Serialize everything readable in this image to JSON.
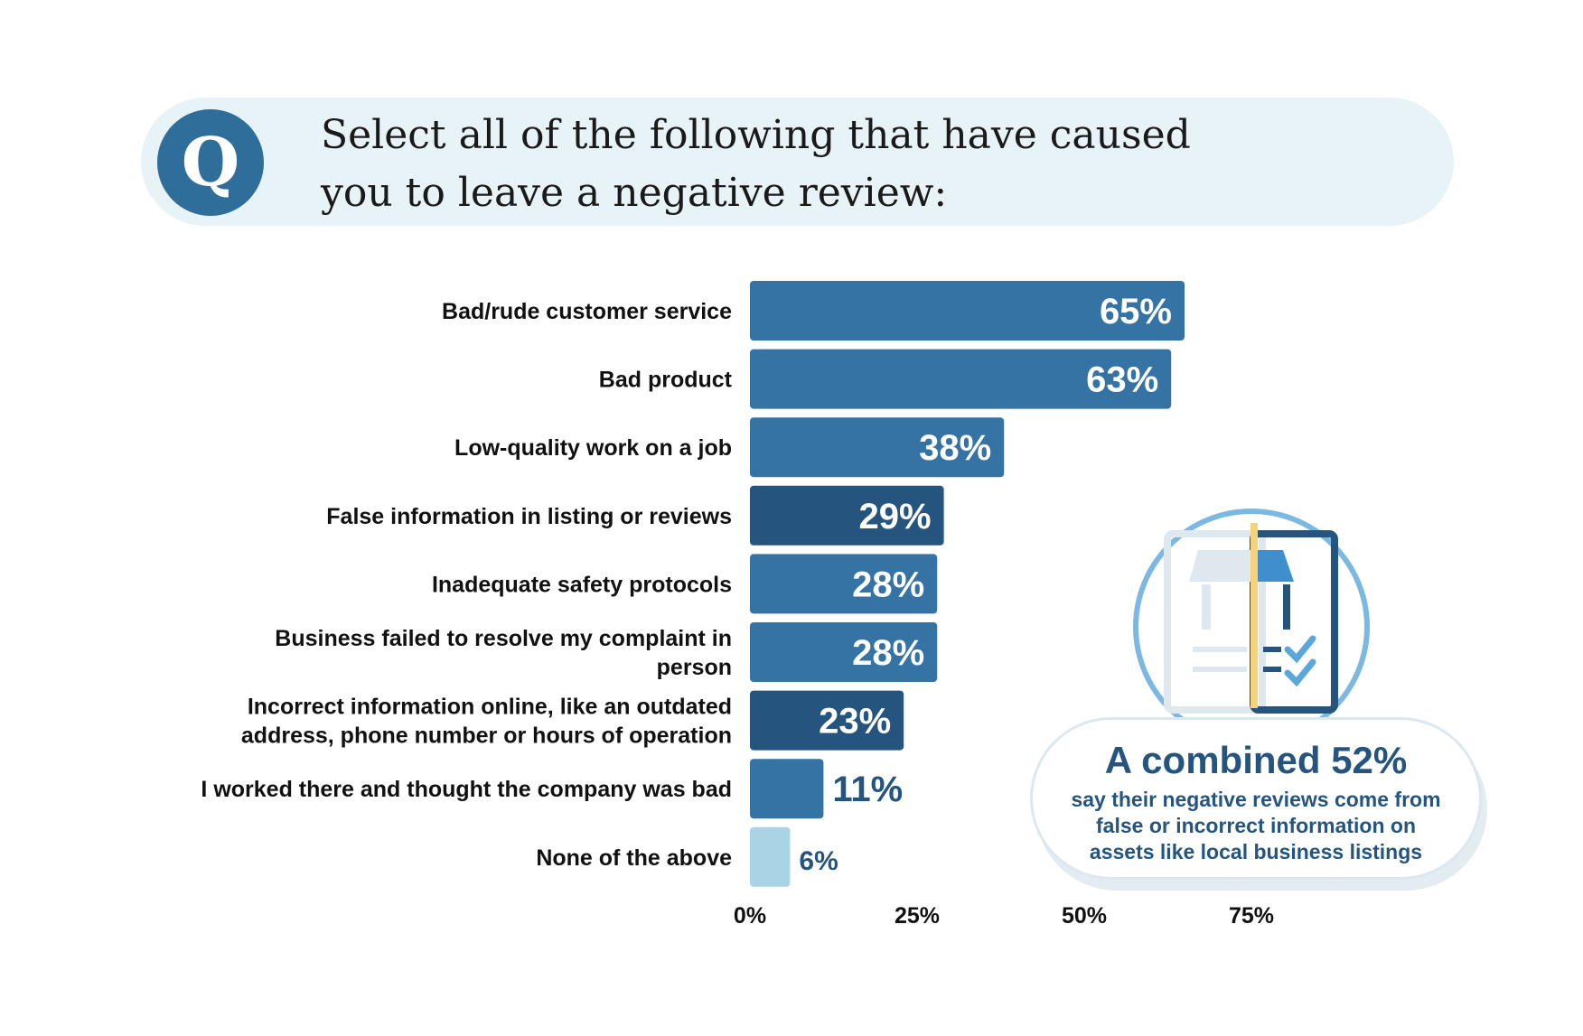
{
  "question": {
    "badge": "Q",
    "text": "Select all of the following that have caused you to leave a negative review:"
  },
  "callout": {
    "headline": "A combined 52%",
    "body": "say their negative reviews come from false or incorrect information on assets like local business listings"
  },
  "chart_data": {
    "type": "bar",
    "orientation": "horizontal",
    "categories": [
      "Bad/rude customer service",
      "Bad product",
      "Low-quality work on a job",
      "False information in listing or reviews",
      "Inadequate safety protocols",
      "Business failed to resolve my complaint in person",
      "Incorrect information online, like an outdated address, phone number or hours of operation",
      "I worked there and thought the company was bad",
      "None of the above"
    ],
    "values": [
      65,
      63,
      38,
      29,
      28,
      28,
      23,
      11,
      6
    ],
    "value_labels": [
      "65%",
      "63%",
      "38%",
      "29%",
      "28%",
      "28%",
      "23%",
      "11%",
      "6%"
    ],
    "bar_colors": [
      "#3473a3",
      "#3473a3",
      "#3473a3",
      "#25557e",
      "#3473a3",
      "#3473a3",
      "#25557e",
      "#3473a3",
      "#a9d4e6"
    ],
    "xticks": [
      "0%",
      "25%",
      "50%",
      "75%"
    ],
    "xlim": [
      0,
      100
    ],
    "grid": false,
    "legend": "none"
  },
  "colors": {
    "primary": "#3473a3",
    "dark": "#25557e",
    "light": "#a9d4e6",
    "accent": "#f6d27a"
  }
}
